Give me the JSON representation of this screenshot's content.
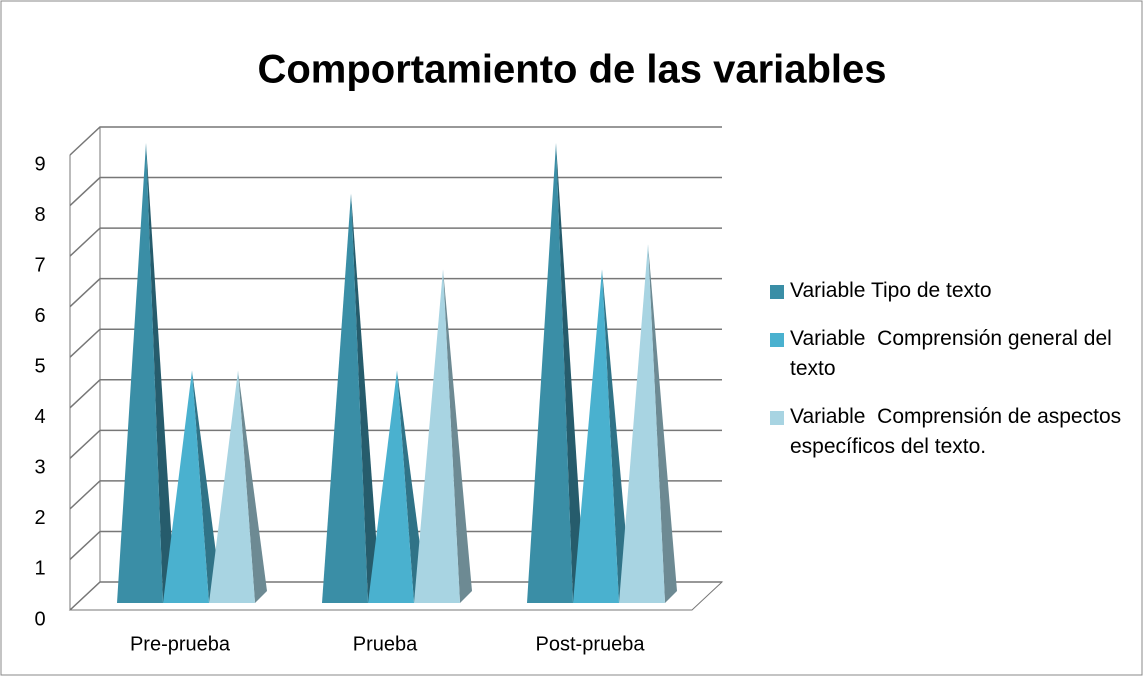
{
  "chart_data": {
    "type": "bar",
    "title": "Comportamiento de las variables",
    "categories": [
      "Pre-prueba",
      "Prueba",
      "Post-prueba"
    ],
    "series": [
      {
        "name": "Variable Tipo de texto",
        "color": "#3a8ea6",
        "values": [
          9,
          8,
          9
        ]
      },
      {
        "name": "Variable  Comprensión general del texto",
        "color": "#4ab1cf",
        "values": [
          4.5,
          4.5,
          6.5
        ]
      },
      {
        "name": "Variable  Comprensión de aspectos específicos del texto.",
        "color": "#a8d4e2",
        "values": [
          4.5,
          6.5,
          7
        ]
      }
    ],
    "ylim": [
      0,
      9
    ],
    "yticks": [
      0,
      1,
      2,
      3,
      4,
      5,
      6,
      7,
      8,
      9
    ],
    "grid": true,
    "legend": "right"
  }
}
